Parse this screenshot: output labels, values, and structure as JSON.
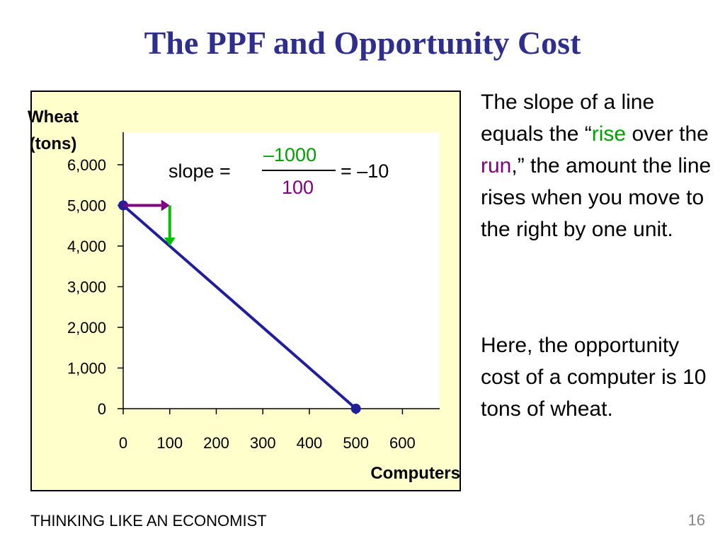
{
  "slide": {
    "title": "The PPF and Opportunity Cost",
    "footer": "THINKING LIKE AN ECONOMIST",
    "page_number": "16"
  },
  "chart_data": {
    "type": "line",
    "ylabel_line1": "Wheat",
    "ylabel_line2": "(tons)",
    "xlabel": "Computers",
    "x_ticks": [
      0,
      100,
      200,
      300,
      400,
      500,
      600
    ],
    "x_tick_labels": [
      "0",
      "100",
      "200",
      "300",
      "400",
      "500",
      "600"
    ],
    "y_ticks": [
      0,
      1000,
      2000,
      3000,
      4000,
      5000,
      6000
    ],
    "y_tick_labels": [
      "0",
      "1,000",
      "2,000",
      "3,000",
      "4,000",
      "5,000",
      "6,000"
    ],
    "xlim": [
      0,
      680
    ],
    "ylim": [
      0,
      6800
    ],
    "grid": false,
    "series": [
      {
        "points": [
          [
            0,
            5000
          ],
          [
            500,
            0
          ]
        ],
        "color": "#1f1f9e"
      }
    ],
    "run_arrow": {
      "from": [
        0,
        5000
      ],
      "to": [
        100,
        5000
      ],
      "color": "#800080"
    },
    "rise_arrow": {
      "from": [
        100,
        5000
      ],
      "to": [
        100,
        4000
      ],
      "color": "#00c000"
    },
    "slope_label": "slope = ",
    "slope_numerator": "–1000",
    "slope_denominator": "100",
    "slope_result": "= –10"
  },
  "sidebar": {
    "para1_part1": "The slope of a line equals the “",
    "rise_word": "rise",
    "para1_part2": " over the ",
    "run_word": "run",
    "para1_part3": ",” the amount the line rises when you move to the right by one unit.",
    "para2": "Here, the opportunity cost of a computer is 10 tons of wheat."
  }
}
